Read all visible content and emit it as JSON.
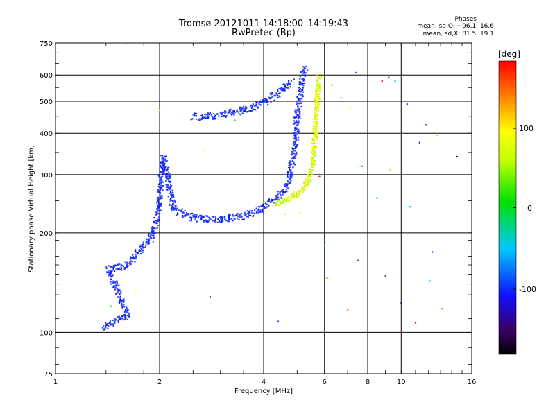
{
  "header": {
    "title_line1": "Tromsø 20121011 14:18:00–14:19:43",
    "title_line2": "RwPretec (Bp)",
    "phase_heading": "Phases",
    "phase_stats_o": "mean, sd,O: −96.1, 16.6",
    "phase_stats_x": "mean, sd,X:  81.5, 19.1"
  },
  "colorbar": {
    "unit_label": "[deg]",
    "ticks": [
      "100",
      "0",
      "-100"
    ],
    "range": [
      -180,
      180
    ]
  },
  "chart_data": {
    "type": "scatter",
    "title": "Tromsø 20121011 14:18:00–14:19:43",
    "subtitle": "RwPretec (Bp)",
    "xlabel": "Frequency [MHz]",
    "ylabel": "Stationary phase Virtual Height [km]",
    "x_scale": "log",
    "y_scale": "log",
    "xlim": [
      1,
      16
    ],
    "ylim": [
      75,
      750
    ],
    "x_ticks": [
      "1",
      "2",
      "4",
      "6",
      "8",
      "10",
      "16"
    ],
    "y_ticks": [
      "75",
      "100",
      "200",
      "300",
      "400",
      "500",
      "600",
      "750"
    ],
    "grid": true,
    "color_scale": "phase [deg]",
    "series": [
      {
        "name": "O",
        "phase_mean": -96.1,
        "description_points": [
          {
            "x": 1.38,
            "y": 102
          },
          {
            "x": 1.42,
            "y": 106
          },
          {
            "x": 1.55,
            "y": 110
          },
          {
            "x": 1.62,
            "y": 113
          },
          {
            "x": 1.42,
            "y": 155
          },
          {
            "x": 1.62,
            "y": 160
          },
          {
            "x": 1.7,
            "y": 170
          },
          {
            "x": 1.8,
            "y": 182
          },
          {
            "x": 1.88,
            "y": 192
          },
          {
            "x": 1.95,
            "y": 215
          },
          {
            "x": 2.0,
            "y": 245
          },
          {
            "x": 2.02,
            "y": 300
          },
          {
            "x": 2.05,
            "y": 340
          },
          {
            "x": 2.2,
            "y": 235
          },
          {
            "x": 2.5,
            "y": 222
          },
          {
            "x": 3.0,
            "y": 220
          },
          {
            "x": 3.5,
            "y": 225
          },
          {
            "x": 3.9,
            "y": 235
          },
          {
            "x": 4.2,
            "y": 248
          },
          {
            "x": 4.5,
            "y": 262
          },
          {
            "x": 4.7,
            "y": 285
          },
          {
            "x": 4.85,
            "y": 330
          },
          {
            "x": 4.95,
            "y": 380
          },
          {
            "x": 5.0,
            "y": 450
          },
          {
            "x": 5.1,
            "y": 520
          },
          {
            "x": 5.2,
            "y": 600
          },
          {
            "x": 5.3,
            "y": 630
          },
          {
            "x": 2.5,
            "y": 448
          },
          {
            "x": 2.9,
            "y": 452
          },
          {
            "x": 3.3,
            "y": 462
          },
          {
            "x": 3.7,
            "y": 478
          },
          {
            "x": 4.1,
            "y": 500
          },
          {
            "x": 4.5,
            "y": 540
          },
          {
            "x": 4.85,
            "y": 580
          }
        ]
      },
      {
        "name": "X",
        "phase_mean": 81.5,
        "description_points": [
          {
            "x": 4.3,
            "y": 245
          },
          {
            "x": 4.6,
            "y": 250
          },
          {
            "x": 4.9,
            "y": 258
          },
          {
            "x": 5.2,
            "y": 270
          },
          {
            "x": 5.4,
            "y": 290
          },
          {
            "x": 5.55,
            "y": 320
          },
          {
            "x": 5.6,
            "y": 360
          },
          {
            "x": 5.65,
            "y": 420
          },
          {
            "x": 5.7,
            "y": 480
          },
          {
            "x": 5.75,
            "y": 550
          },
          {
            "x": 5.8,
            "y": 600
          }
        ]
      }
    ]
  }
}
